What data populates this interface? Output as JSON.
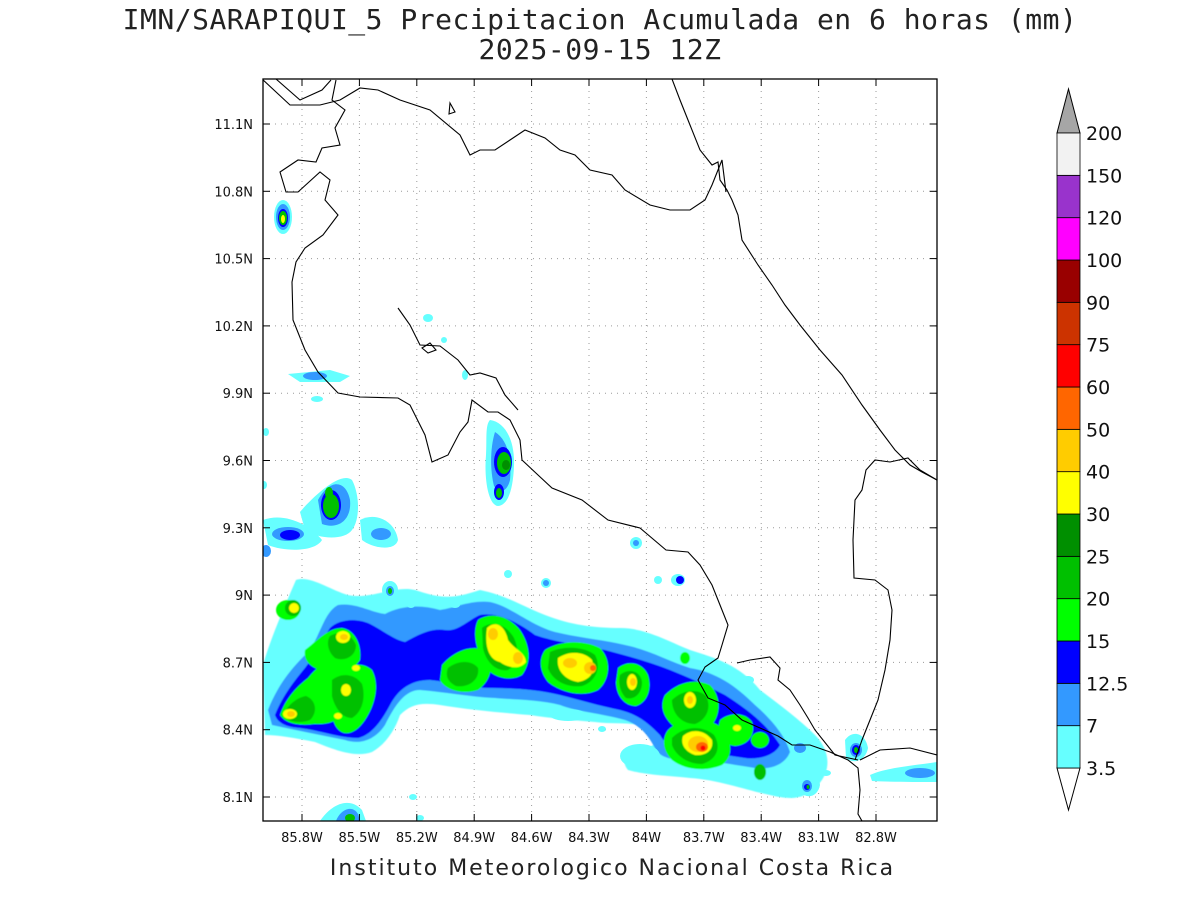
{
  "title": {
    "line1": "IMN/SARAPIQUI_5 Precipitacion Acumulada en 6 horas (mm)",
    "line2": "2025-09-15 12Z"
  },
  "credit": "Instituto Meteorologico Nacional Costa Rica",
  "axes": {
    "lat_ticks": [
      "11.1N",
      "10.8N",
      "10.5N",
      "10.2N",
      "9.9N",
      "9.6N",
      "9.3N",
      "9N",
      "8.7N",
      "8.4N",
      "8.1N"
    ],
    "lon_ticks": [
      "85.8W",
      "85.5W",
      "85.2W",
      "84.9W",
      "84.6W",
      "84.3W",
      "84W",
      "83.7W",
      "83.4W",
      "83.1W",
      "82.8W"
    ],
    "grid": "dotted"
  },
  "colorbar": {
    "units": "mm",
    "labels": [
      "3.5",
      "7",
      "12.5",
      "15",
      "20",
      "25",
      "30",
      "40",
      "50",
      "60",
      "75",
      "90",
      "100",
      "120",
      "150",
      "200"
    ],
    "colors": [
      "#66ffff",
      "#3399ff",
      "#0000ff",
      "#00ff00",
      "#00c000",
      "#008f00",
      "#ffff00",
      "#ffcc00",
      "#ff6600",
      "#ff0000",
      "#cc3300",
      "#990000",
      "#ff00ff",
      "#9933cc",
      "#f2f2f2"
    ],
    "upper_arrow_color": "#a6a6a6",
    "lower_arrow_color": "#ffffff"
  },
  "coast_color": "#000000"
}
